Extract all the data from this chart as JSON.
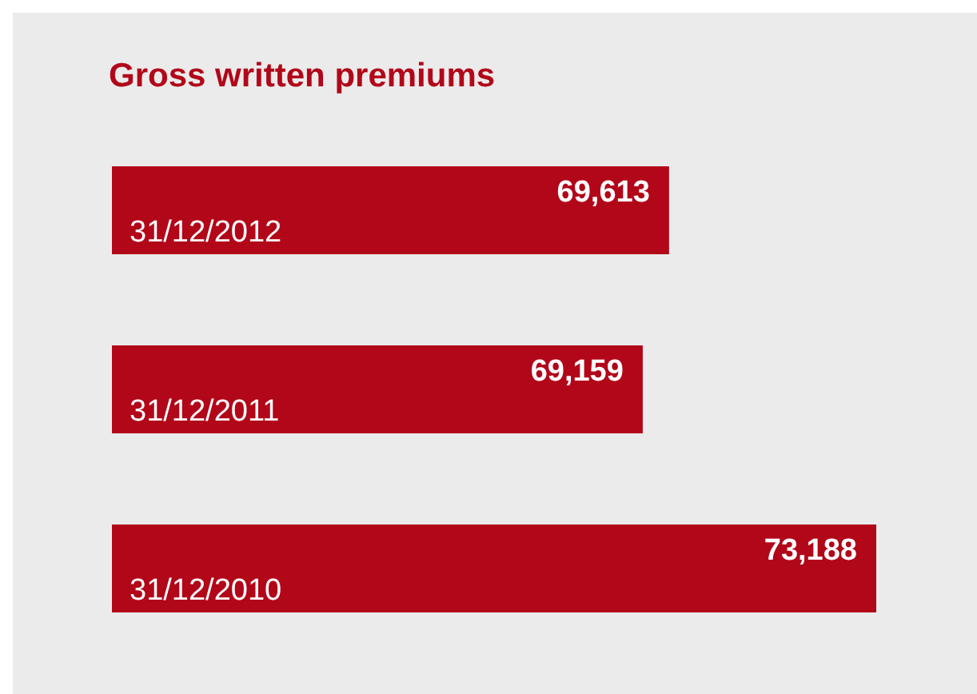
{
  "chart_data": {
    "type": "bar",
    "orientation": "horizontal",
    "title": "Gross written premiums",
    "categories": [
      "31/12/2012",
      "31/12/2011",
      "31/12/2010"
    ],
    "values": [
      69613,
      69159,
      73188
    ],
    "value_labels": [
      "69,613",
      "69,159",
      "73,188"
    ],
    "color": "#b20619",
    "xlim": [
      60000,
      73188
    ]
  }
}
